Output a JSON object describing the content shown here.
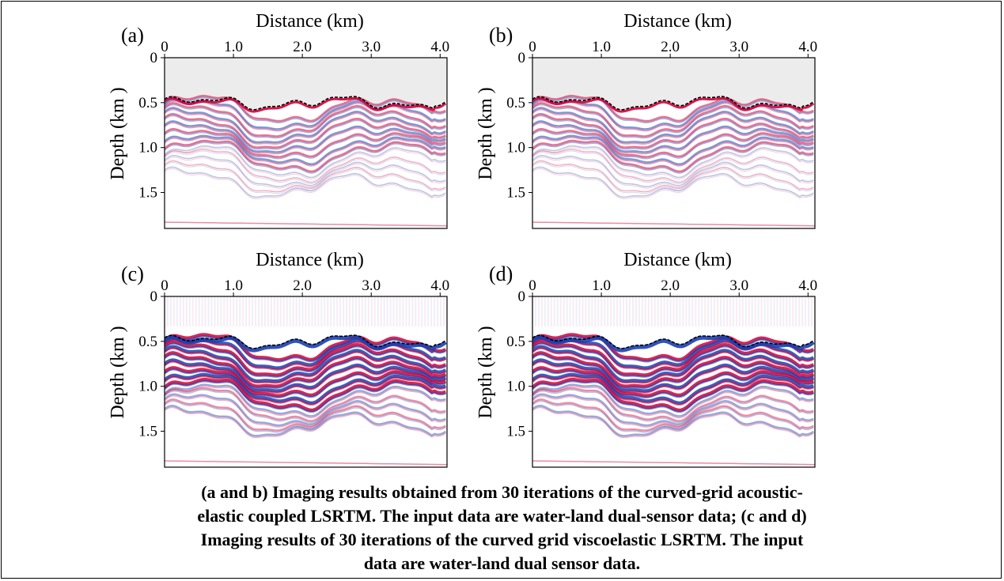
{
  "figure": {
    "panels": [
      {
        "id": "a",
        "label": "(a)",
        "xlabel": "Distance (km)",
        "ylabel": "Depth (km )",
        "xticks": [
          "0",
          "1.0",
          "2.0",
          "3.0",
          "4.0"
        ],
        "yticks": [
          "0",
          "0.5",
          "1.0",
          "1.5"
        ]
      },
      {
        "id": "b",
        "label": "(b)",
        "xlabel": "Distance (km)",
        "ylabel": "Depth (km )",
        "xticks": [
          "0",
          "1.0",
          "2.0",
          "3.0",
          "4.0"
        ],
        "yticks": [
          "0",
          "0.5",
          "1.0",
          "1.5"
        ]
      },
      {
        "id": "c",
        "label": "(c)",
        "xlabel": "Distance (km)",
        "ylabel": "Depth (km )",
        "xticks": [
          "0",
          "1.0",
          "2.0",
          "3.0",
          "4.0"
        ],
        "yticks": [
          "0",
          "0.5",
          "1.0",
          "1.5"
        ]
      },
      {
        "id": "d",
        "label": "(d)",
        "xlabel": "Distance (km)",
        "ylabel": "Depth (km )",
        "xticks": [
          "0",
          "1.0",
          "2.0",
          "3.0",
          "4.0"
        ],
        "yticks": [
          "0",
          "0.5",
          "1.0",
          "1.5"
        ]
      }
    ],
    "x_range_km": [
      0,
      4.1
    ],
    "depth_range_km": [
      0,
      1.9
    ],
    "colors": {
      "positive": "#d0003a",
      "negative": "#1a3fb0",
      "water": "#ececec",
      "background": "#ffffff"
    }
  },
  "caption": {
    "lines": [
      "(a and b) Imaging results obtained from 30 iterations of the curved-grid acoustic-",
      "elastic coupled LSRTM. The input data are water-land dual-sensor data; (c and d)",
      "Imaging results of 30 iterations of the curved grid viscoelastic LSRTM. The input",
      "data are water-land dual sensor data."
    ]
  }
}
